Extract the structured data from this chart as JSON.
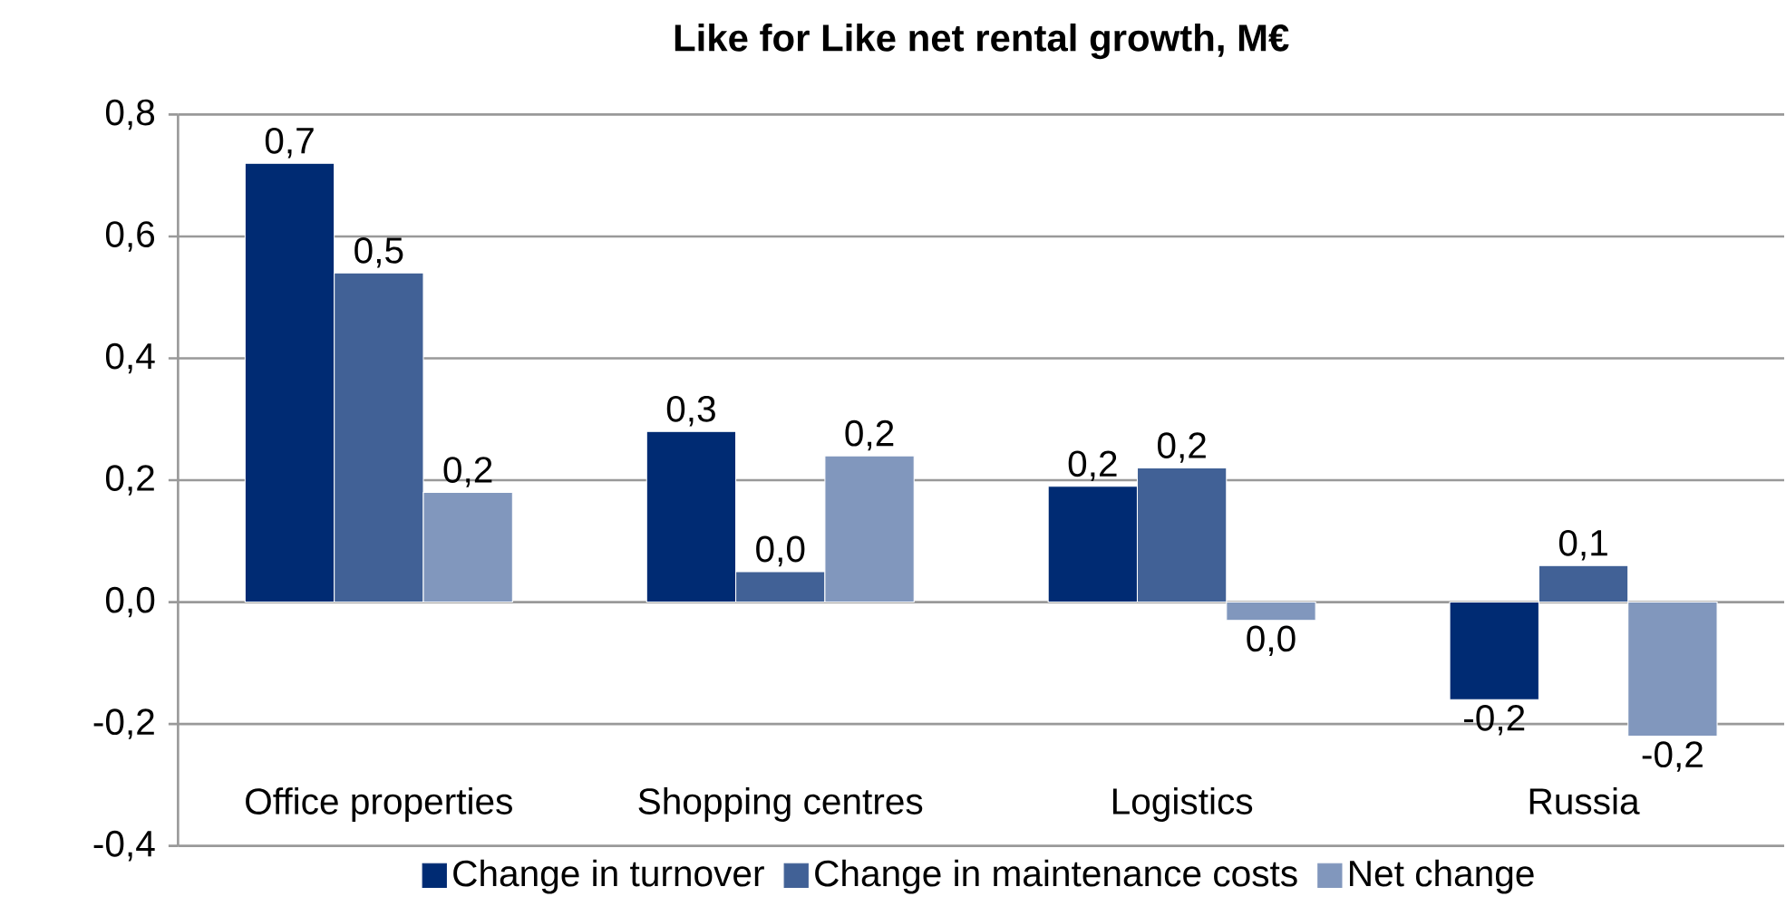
{
  "chart_data": {
    "type": "bar",
    "title": "Like for Like net rental growth, M€",
    "categories": [
      "Office properties",
      "Shopping centres",
      "Logistics",
      "Russia"
    ],
    "series": [
      {
        "name": "Change in turnover",
        "color": "#002b73",
        "values": [
          0.72,
          0.28,
          0.19,
          -0.16
        ],
        "value_labels": [
          "0,7",
          "0,3",
          "0,2",
          "-0,2"
        ]
      },
      {
        "name": "Change in maintenance costs",
        "color": "#416196",
        "values": [
          0.54,
          0.05,
          0.22,
          0.06
        ],
        "value_labels": [
          "0,5",
          "0,0",
          "0,2",
          "0,1"
        ]
      },
      {
        "name": "Net change",
        "color": "#8197bd",
        "values": [
          0.18,
          0.24,
          -0.03,
          -0.22
        ],
        "value_labels": [
          "0,2",
          "0,2",
          "0,0",
          "-0,2"
        ]
      }
    ],
    "ylim": [
      -0.4,
      0.8
    ],
    "yticks": [
      {
        "value": -0.4,
        "label": "-0,4"
      },
      {
        "value": -0.2,
        "label": "-0,2"
      },
      {
        "value": 0,
        "label": "0,0"
      },
      {
        "value": 0.2,
        "label": "0,2"
      },
      {
        "value": 0.4,
        "label": "0,4"
      },
      {
        "value": 0.6,
        "label": "0,6"
      },
      {
        "value": 0.8,
        "label": "0,8"
      }
    ],
    "grid": "y",
    "legend": "bottom"
  }
}
